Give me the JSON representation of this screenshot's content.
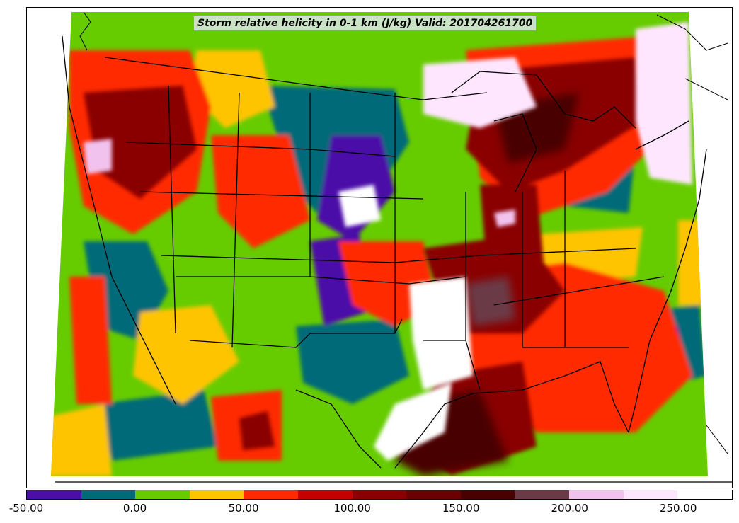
{
  "title": "Storm relative helicity in 0-1 km (J/kg) Valid: 201704261700",
  "colorbar": {
    "levels": [
      -50,
      -25,
      0,
      25,
      50,
      75,
      100,
      125,
      150,
      175,
      200,
      225,
      250,
      275
    ],
    "colors": [
      "#4b0fa8",
      "#006b78",
      "#66cc00",
      "#ffc400",
      "#ff2a00",
      "#c40000",
      "#8a0000",
      "#6a0000",
      "#4a0000",
      "#6b3a47",
      "#f2c2ee",
      "#ffe6ff",
      "#ffffff"
    ],
    "tick_labels": [
      {
        "value": -50,
        "text": "-50.00"
      },
      {
        "value": 0,
        "text": "0.00"
      },
      {
        "value": 50,
        "text": "50.00"
      },
      {
        "value": 100,
        "text": "100.00"
      },
      {
        "value": 150,
        "text": "150.00"
      },
      {
        "value": 200,
        "text": "200.00"
      },
      {
        "value": 250,
        "text": "250.00"
      }
    ]
  }
}
